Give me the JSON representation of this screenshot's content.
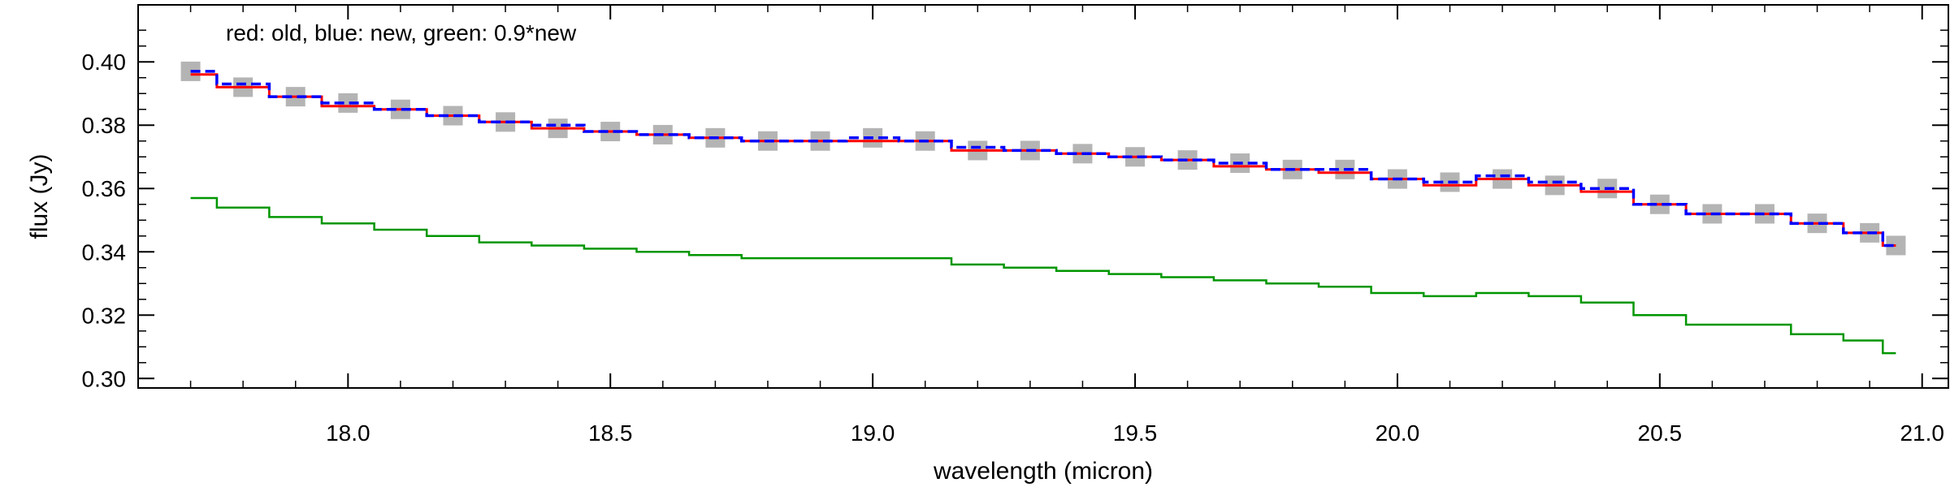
{
  "chart_data": {
    "type": "line",
    "annotation": "red: old, blue: new, green: 0.9*new",
    "xlabel": "wavelength (micron)",
    "ylabel": "flux (Jy)",
    "xlim": [
      17.6,
      21.05
    ],
    "ylim": [
      0.297,
      0.418
    ],
    "x_ticks": [
      18.0,
      18.5,
      19.0,
      19.5,
      20.0,
      20.5,
      21.0
    ],
    "x_tick_labels": [
      "18.0",
      "18.5",
      "19.0",
      "19.5",
      "20.0",
      "20.5",
      "21.0"
    ],
    "y_ticks": [
      0.3,
      0.32,
      0.34,
      0.36,
      0.38,
      0.4
    ],
    "y_tick_labels": [
      "0.30",
      "0.32",
      "0.34",
      "0.36",
      "0.38",
      "0.40"
    ],
    "grid": false,
    "series": [
      {
        "style": "grey squares (uncertainty)",
        "color": "#b4b4b4",
        "x": [
          17.7,
          17.8,
          17.9,
          18.0,
          18.1,
          18.2,
          18.3,
          18.4,
          18.5,
          18.6,
          18.7,
          18.8,
          18.9,
          19.0,
          19.1,
          19.2,
          19.3,
          19.4,
          19.5,
          19.6,
          19.7,
          19.8,
          19.9,
          20.0,
          20.1,
          20.2,
          20.3,
          20.4,
          20.5,
          20.6,
          20.7,
          20.8,
          20.9,
          20.95
        ],
        "values": [
          0.397,
          0.392,
          0.389,
          0.387,
          0.385,
          0.383,
          0.381,
          0.379,
          0.378,
          0.377,
          0.376,
          0.375,
          0.375,
          0.376,
          0.375,
          0.372,
          0.372,
          0.371,
          0.37,
          0.369,
          0.368,
          0.366,
          0.366,
          0.363,
          0.362,
          0.363,
          0.361,
          0.36,
          0.355,
          0.352,
          0.352,
          0.349,
          0.346,
          0.342
        ]
      },
      {
        "style": "red histogram (old)",
        "color": "#ff0000",
        "x": [
          17.7,
          17.8,
          17.9,
          18.0,
          18.1,
          18.2,
          18.3,
          18.4,
          18.5,
          18.6,
          18.7,
          18.8,
          18.9,
          19.0,
          19.1,
          19.2,
          19.3,
          19.4,
          19.5,
          19.6,
          19.7,
          19.8,
          19.9,
          20.0,
          20.1,
          20.2,
          20.3,
          20.4,
          20.5,
          20.6,
          20.7,
          20.8,
          20.9,
          20.95
        ],
        "values": [
          0.396,
          0.392,
          0.389,
          0.386,
          0.385,
          0.383,
          0.381,
          0.379,
          0.378,
          0.377,
          0.376,
          0.375,
          0.375,
          0.375,
          0.375,
          0.372,
          0.372,
          0.371,
          0.37,
          0.369,
          0.367,
          0.366,
          0.365,
          0.363,
          0.361,
          0.363,
          0.361,
          0.359,
          0.355,
          0.352,
          0.352,
          0.349,
          0.346,
          0.342
        ]
      },
      {
        "style": "blue dashed histogram (new)",
        "color": "#0000ff",
        "x": [
          17.7,
          17.8,
          17.9,
          18.0,
          18.1,
          18.2,
          18.3,
          18.4,
          18.5,
          18.6,
          18.7,
          18.8,
          18.9,
          19.0,
          19.1,
          19.2,
          19.3,
          19.4,
          19.5,
          19.6,
          19.7,
          19.8,
          19.9,
          20.0,
          20.1,
          20.2,
          20.3,
          20.4,
          20.5,
          20.6,
          20.7,
          20.8,
          20.9,
          20.95
        ],
        "values": [
          0.397,
          0.393,
          0.389,
          0.387,
          0.385,
          0.383,
          0.381,
          0.38,
          0.378,
          0.377,
          0.376,
          0.375,
          0.375,
          0.376,
          0.375,
          0.373,
          0.372,
          0.371,
          0.37,
          0.369,
          0.368,
          0.366,
          0.366,
          0.363,
          0.362,
          0.364,
          0.362,
          0.36,
          0.355,
          0.352,
          0.352,
          0.349,
          0.346,
          0.342
        ]
      },
      {
        "style": "green histogram (0.9*new)",
        "color": "#009600",
        "x": [
          17.7,
          17.8,
          17.9,
          18.0,
          18.1,
          18.2,
          18.3,
          18.4,
          18.5,
          18.6,
          18.7,
          18.8,
          18.9,
          19.0,
          19.1,
          19.2,
          19.3,
          19.4,
          19.5,
          19.6,
          19.7,
          19.8,
          19.9,
          20.0,
          20.1,
          20.2,
          20.3,
          20.4,
          20.5,
          20.6,
          20.7,
          20.8,
          20.9,
          20.95
        ],
        "values": [
          0.357,
          0.354,
          0.351,
          0.349,
          0.347,
          0.345,
          0.343,
          0.342,
          0.341,
          0.34,
          0.339,
          0.338,
          0.338,
          0.338,
          0.338,
          0.336,
          0.335,
          0.334,
          0.333,
          0.332,
          0.331,
          0.33,
          0.329,
          0.327,
          0.326,
          0.327,
          0.326,
          0.324,
          0.32,
          0.317,
          0.317,
          0.314,
          0.312,
          0.308
        ]
      }
    ]
  }
}
